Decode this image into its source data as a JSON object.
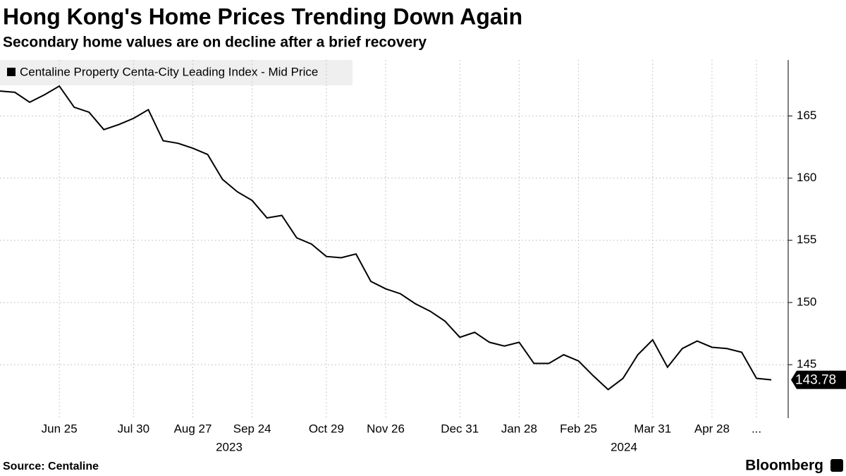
{
  "chart_data": {
    "type": "line",
    "title": "Hong Kong's Home Prices Trending Down Again",
    "subtitle": "Secondary home values are on decline after a brief recovery",
    "source": "Source: Centaline",
    "brand": "Bloomberg",
    "categories": [
      null,
      null,
      null,
      null,
      "Jun 25",
      null,
      null,
      null,
      null,
      "Jul 30",
      null,
      null,
      null,
      "Aug 27",
      null,
      null,
      null,
      "Sep 24",
      null,
      null,
      null,
      null,
      "Oct 29",
      null,
      null,
      null,
      "Nov 26",
      null,
      null,
      null,
      null,
      "Dec 31",
      null,
      null,
      null,
      "Jan 28",
      null,
      null,
      null,
      "Feb 25",
      null,
      null,
      null,
      null,
      "Mar 31",
      null,
      null,
      null,
      "Apr 28",
      null,
      null,
      "...",
      null
    ],
    "year_labels": [
      "2023",
      "2024"
    ],
    "series": [
      {
        "name": "Centaline Property Centa-City Leading Index - Mid Price",
        "color": "#000000",
        "values": [
          167.0,
          166.9,
          166.1,
          166.7,
          167.4,
          165.7,
          165.3,
          163.9,
          164.3,
          164.8,
          165.5,
          163.0,
          162.8,
          162.4,
          161.9,
          159.9,
          158.9,
          158.2,
          156.8,
          157.0,
          155.2,
          154.7,
          153.7,
          153.6,
          153.9,
          151.7,
          151.1,
          150.7,
          149.9,
          149.3,
          148.5,
          147.2,
          147.6,
          146.8,
          146.5,
          146.8,
          145.1,
          145.1,
          145.8,
          145.3,
          144.1,
          143.0,
          143.9,
          145.8,
          147.0,
          144.8,
          146.3,
          146.9,
          146.4,
          146.3,
          146.0,
          143.9,
          143.78
        ]
      }
    ],
    "ylim": [
      140.7,
      169.5
    ],
    "yticks": [
      145,
      150,
      155,
      160,
      165
    ],
    "grid": true
  }
}
